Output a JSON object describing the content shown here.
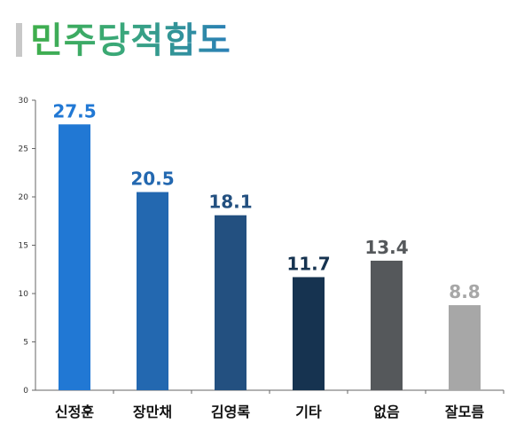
{
  "header": {
    "title": "민주당적합도"
  },
  "chart_data": {
    "type": "bar",
    "title": "민주당적합도",
    "categories": [
      "신정훈",
      "장만채",
      "김영록",
      "기타",
      "없음",
      "잘모름"
    ],
    "values": [
      27.5,
      20.5,
      18.1,
      11.7,
      13.4,
      8.8
    ],
    "value_labels": [
      "27.5",
      "20.5",
      "18.1",
      "11.7",
      "13.4",
      "8.8"
    ],
    "bar_colors": [
      "#2178d4",
      "#2368b0",
      "#235080",
      "#163350",
      "#55585b",
      "#a7a7a7"
    ],
    "label_colors": [
      "#2178d4",
      "#2368b0",
      "#235080",
      "#163350",
      "#55585b",
      "#a7a7a7"
    ],
    "ylim": [
      0,
      30
    ],
    "yticks": [
      0,
      5,
      10,
      15,
      20,
      25,
      30
    ],
    "xlabel": "",
    "ylabel": "",
    "grid": false,
    "legend": "none"
  }
}
